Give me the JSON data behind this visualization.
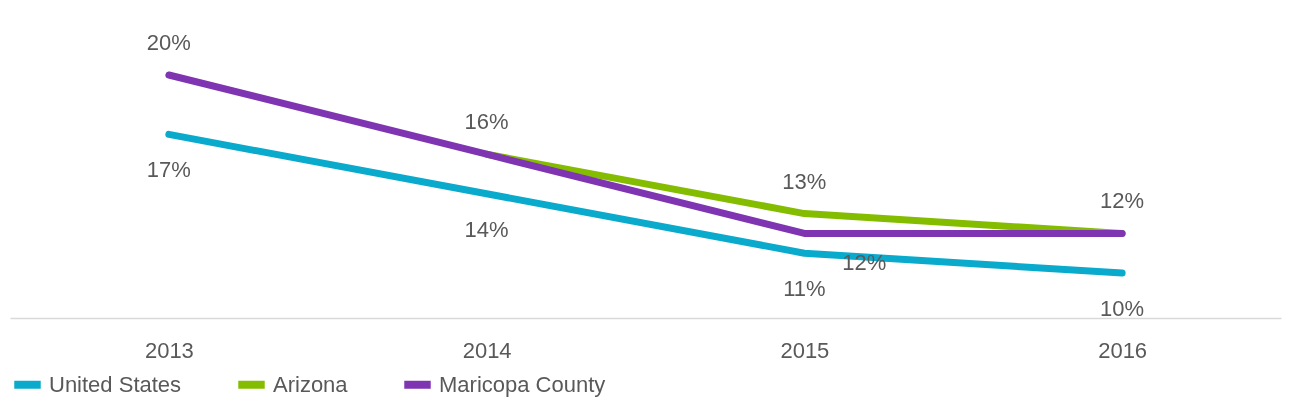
{
  "chart_data": {
    "type": "line",
    "categories": [
      "2013",
      "2014",
      "2015",
      "2016"
    ],
    "series": [
      {
        "name": "United States",
        "color": "#0aaacd",
        "values": [
          17,
          14,
          11,
          10
        ],
        "value_labels": [
          "17%",
          "14%",
          "11%",
          "10%"
        ]
      },
      {
        "name": "Arizona",
        "color": "#84bd00",
        "values": [
          null,
          16,
          13,
          12
        ],
        "value_labels": [
          null,
          null,
          "13%",
          "12%"
        ]
      },
      {
        "name": "Maricopa County",
        "color": "#7f35b2",
        "values": [
          20,
          16,
          12,
          12
        ],
        "value_labels": [
          "20%",
          "16%",
          "12%",
          null
        ]
      }
    ],
    "tick_labels": "x",
    "legend": "bottom",
    "line_style": "solid"
  }
}
